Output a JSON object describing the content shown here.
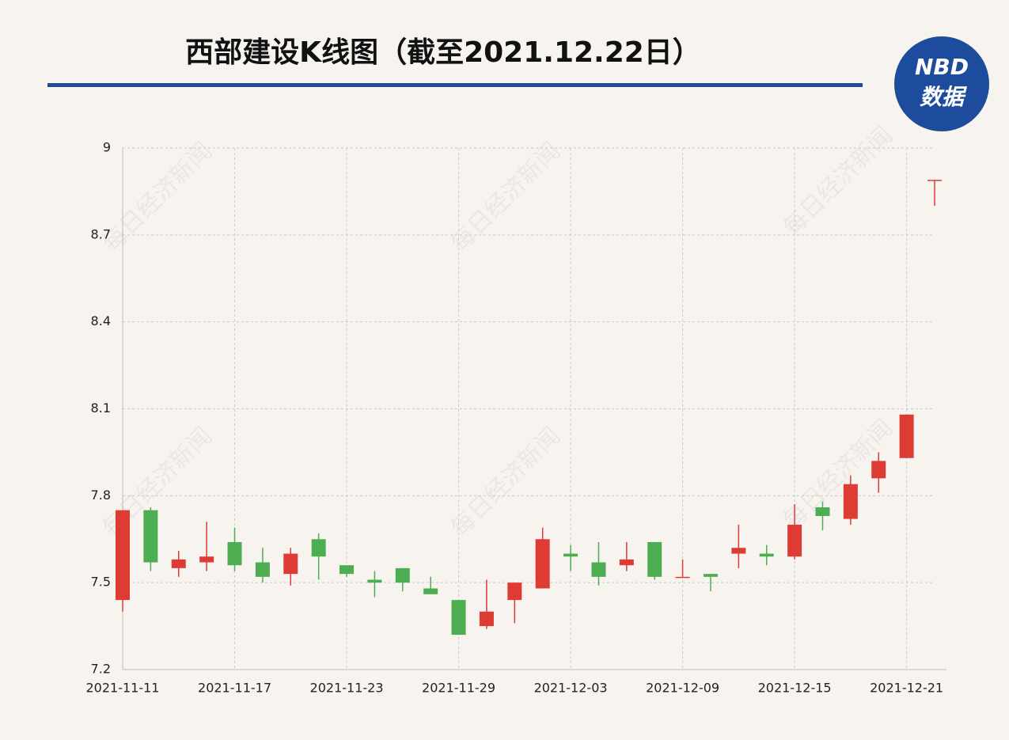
{
  "chart_data": {
    "type": "candlestick",
    "title": "西部建设K线图（截至2021.12.22日）",
    "logo": {
      "top": "NBD",
      "bottom": "数据"
    },
    "watermark": "每日经济新闻",
    "categories": [
      "2021-11-11",
      null,
      null,
      null,
      "2021-11-17",
      null,
      null,
      null,
      "2021-11-23",
      null,
      null,
      null,
      "2021-11-29",
      null,
      null,
      null,
      "2021-12-03",
      null,
      null,
      null,
      "2021-12-09",
      null,
      null,
      null,
      "2021-12-15",
      null,
      null,
      null,
      "2021-12-21",
      null
    ],
    "open": [
      7.44,
      7.75,
      7.55,
      7.57,
      7.64,
      7.57,
      7.53,
      7.65,
      7.56,
      7.51,
      7.55,
      7.48,
      7.44,
      7.35,
      7.44,
      7.48,
      7.6,
      7.57,
      7.56,
      7.64,
      7.52,
      7.53,
      7.6,
      7.6,
      7.59,
      7.76,
      7.72,
      7.86,
      7.93,
      8.89
    ],
    "high": [
      7.75,
      7.76,
      7.61,
      7.71,
      7.69,
      7.62,
      7.62,
      7.67,
      7.56,
      7.54,
      7.55,
      7.52,
      7.44,
      7.51,
      7.5,
      7.69,
      7.63,
      7.64,
      7.64,
      7.64,
      7.58,
      7.53,
      7.7,
      7.63,
      7.77,
      7.78,
      7.87,
      7.95,
      8.08,
      8.89
    ],
    "low": [
      7.4,
      7.54,
      7.52,
      7.54,
      7.54,
      7.5,
      7.49,
      7.51,
      7.52,
      7.45,
      7.47,
      7.46,
      7.32,
      7.34,
      7.36,
      7.48,
      7.54,
      7.49,
      7.54,
      7.51,
      7.52,
      7.47,
      7.55,
      7.56,
      7.58,
      7.68,
      7.7,
      7.81,
      7.93,
      8.8
    ],
    "close": [
      7.75,
      7.57,
      7.58,
      7.59,
      7.56,
      7.52,
      7.6,
      7.59,
      7.53,
      7.5,
      7.5,
      7.46,
      7.32,
      7.4,
      7.5,
      7.65,
      7.59,
      7.52,
      7.58,
      7.52,
      7.52,
      7.52,
      7.62,
      7.59,
      7.7,
      7.73,
      7.84,
      7.92,
      8.08,
      8.89
    ],
    "up_color": "#df3b35",
    "down_color": "#4cae50",
    "ylim": [
      7.2,
      9
    ],
    "yticks": [
      7.2,
      7.5,
      7.8,
      8.1,
      8.4,
      8.7,
      9
    ],
    "grid": true
  }
}
